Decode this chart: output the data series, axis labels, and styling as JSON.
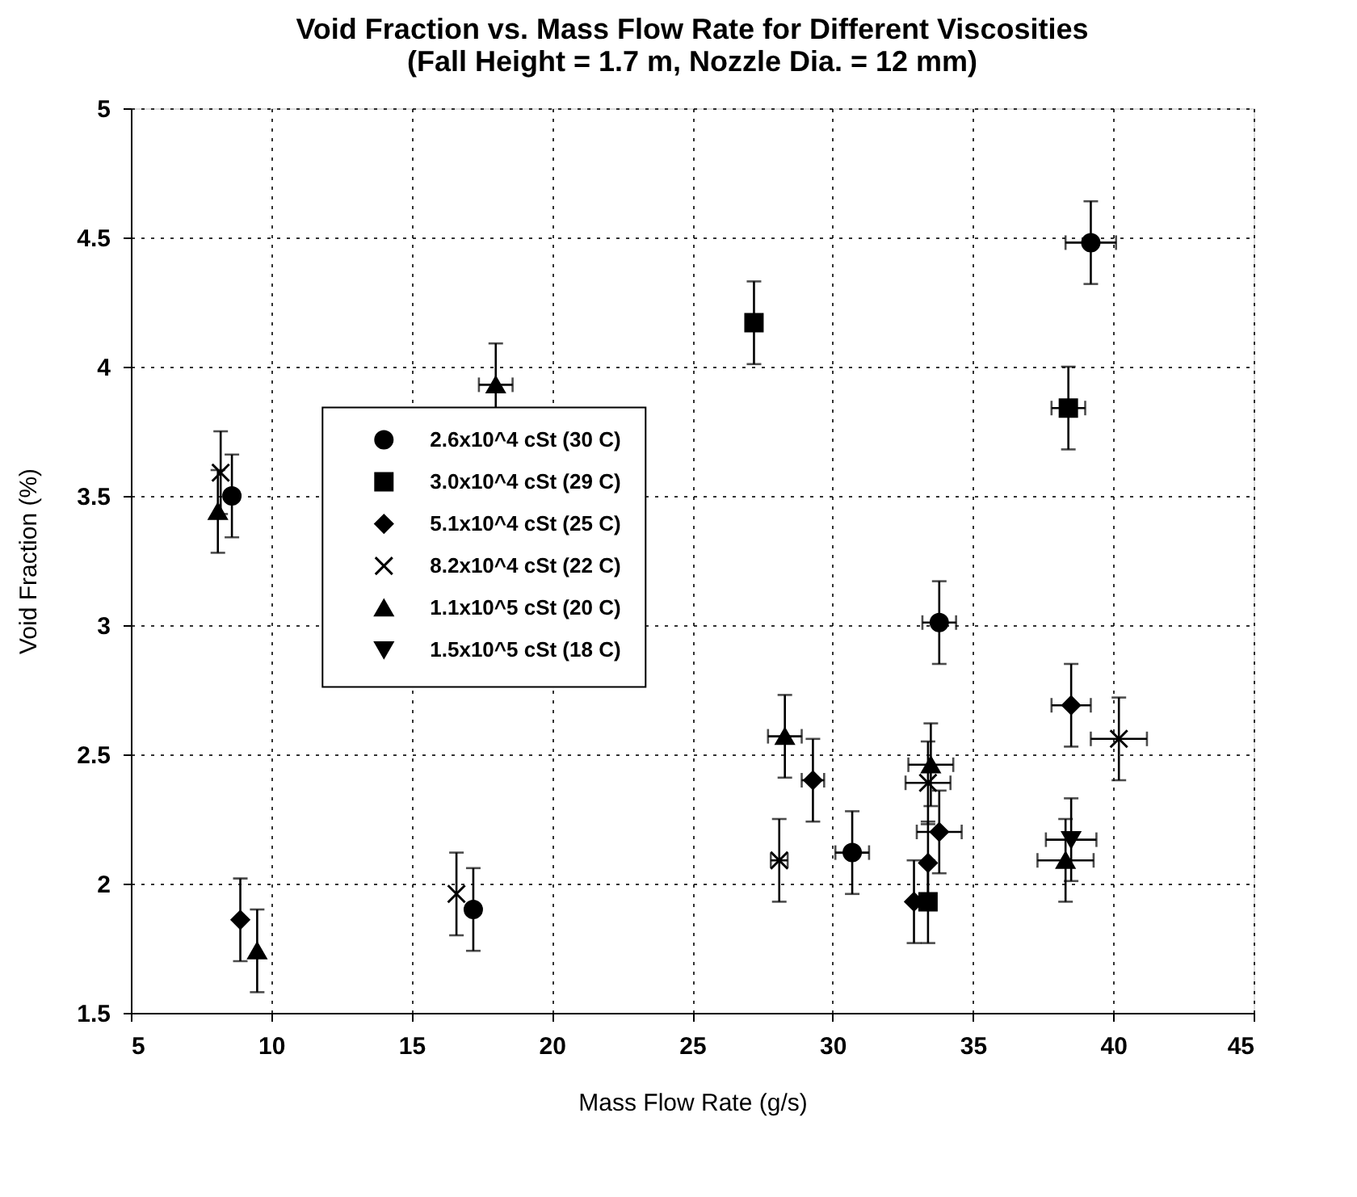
{
  "chart_data": {
    "type": "scatter",
    "title": [
      "Void Fraction vs. Mass Flow Rate for Different Viscosities",
      "(Fall Height = 1.7 m, Nozzle Dia. = 12 mm)"
    ],
    "xlabel": "Mass Flow Rate (g/s)",
    "ylabel": "Void Fraction (%)",
    "xlim": [
      5,
      45
    ],
    "xticks": [
      5,
      10,
      15,
      20,
      25,
      30,
      35,
      40,
      45
    ],
    "ylim": [
      1.5,
      5
    ],
    "yticks": [
      1.5,
      2,
      2.5,
      3,
      3.5,
      4,
      4.5,
      5
    ],
    "grid": true,
    "legend": "left",
    "series": [
      {
        "name": "2.6x10^4 cSt (30 C)",
        "color": "#000000",
        "marker": "circle",
        "x": [
          8.6,
          17.2,
          30.7,
          33.8,
          39.2
        ],
        "values": [
          3.5,
          1.9,
          2.12,
          3.01,
          4.48
        ],
        "errors": [
          0.16,
          0.16,
          0.16,
          0.16,
          0.16
        ],
        "xerrors": [
          null,
          null,
          0.6,
          0.6,
          0.9
        ]
      },
      {
        "name": "3.0x10^4 cSt (29 C)",
        "color": "#000000",
        "marker": "square",
        "x": [
          27.2,
          38.4,
          33.4
        ],
        "values": [
          4.17,
          3.84,
          1.93
        ],
        "errors": [
          0.16,
          0.16,
          0.16
        ],
        "xerrors": [
          null,
          0.6,
          null
        ]
      },
      {
        "name": "5.1x10^4 cSt (25 C)",
        "color": "#000000",
        "marker": "diamond",
        "x": [
          8.9,
          29.3,
          33.4,
          33.8,
          38.5,
          32.9
        ],
        "values": [
          1.86,
          2.4,
          2.08,
          2.2,
          2.69,
          1.93
        ],
        "errors": [
          0.16,
          0.16,
          0.16,
          0.16,
          0.16,
          0.16
        ],
        "xerrors": [
          null,
          0.4,
          null,
          0.8,
          0.7,
          null
        ]
      },
      {
        "name": "8.2x10^4 cSt (22 C)",
        "color": "#000000",
        "marker": "cross",
        "x": [
          8.2,
          16.6,
          28.1,
          33.4,
          40.2
        ],
        "values": [
          3.59,
          1.96,
          2.09,
          2.39,
          2.56
        ],
        "errors": [
          0.16,
          0.16,
          0.16,
          0.16,
          0.16
        ],
        "xerrors": [
          null,
          null,
          0.3,
          0.8,
          1.0
        ]
      },
      {
        "name": "1.1x10^5 cSt (20 C)",
        "color": "#000000",
        "marker": "triangle",
        "x": [
          8.1,
          9.5,
          18.0,
          28.3,
          33.5,
          38.3
        ],
        "values": [
          3.44,
          1.74,
          3.93,
          2.57,
          2.46,
          2.09
        ],
        "errors": [
          0.16,
          0.16,
          0.16,
          0.16,
          0.16,
          0.16
        ],
        "xerrors": [
          null,
          null,
          0.6,
          0.6,
          0.8,
          1.0
        ]
      },
      {
        "name": "1.5x10^5 cSt (18 C)",
        "color": "#000000",
        "marker": "triangle-down",
        "x": [
          38.5
        ],
        "values": [
          2.17
        ],
        "errors": [
          0.16
        ],
        "xerrors": [
          0.9
        ]
      }
    ]
  }
}
